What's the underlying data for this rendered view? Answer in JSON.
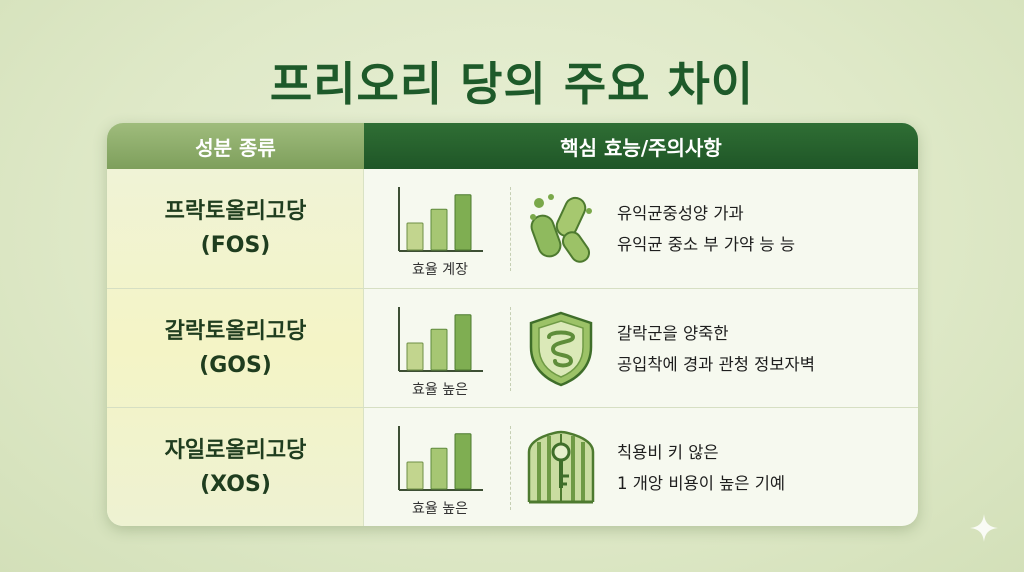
{
  "title": "프리오리 당의 주요 차이",
  "table": {
    "header_left": "성분 종류",
    "header_right": "핵심 효능/주의사항",
    "rows": [
      {
        "name_line1": "프락토올리고당",
        "name_line2": "(FOS)",
        "chart_label": "효율 계장",
        "bar_levels": [
          0.45,
          0.68,
          0.92
        ],
        "icon": "bacteria-icon",
        "desc_line1": "유익균중성양 가과",
        "desc_line2": "유익균 중소 부 가약 능 능"
      },
      {
        "name_line1": "갈락토올리고당",
        "name_line2": "(GOS)",
        "chart_label": "효율 높은",
        "bar_levels": [
          0.45,
          0.68,
          0.92
        ],
        "icon": "shield-intestine-icon",
        "desc_line1": "갈락군을 양죽한",
        "desc_line2": "공입착에 경과 관청 정보자벽"
      },
      {
        "name_line1": "자일로올리고당",
        "name_line2": "(XOS)",
        "chart_label": "효율 높은",
        "bar_levels": [
          0.45,
          0.68,
          0.92
        ],
        "icon": "gate-key-icon",
        "desc_line1": "칙용비 키 않은",
        "desc_line2": "1 개앙 비용이 높은 기예"
      }
    ]
  },
  "colors": {
    "title": "#1e5a2a",
    "header_dark": "#1f5627",
    "header_light": "#8aa968",
    "bar_fill": "#8bb85c"
  }
}
